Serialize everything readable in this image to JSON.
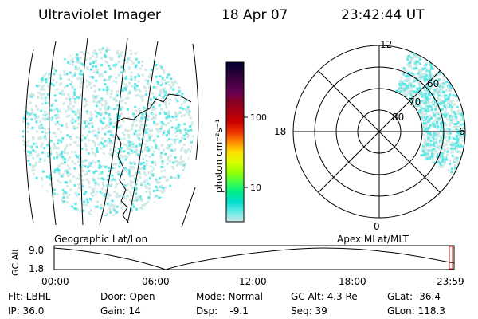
{
  "header": {
    "title": "Ultraviolet Imager",
    "date": "18 Apr 07",
    "time": "23:42:44 UT"
  },
  "colors": {
    "background": "#ffffff",
    "ink": "#000000",
    "emission": "#5de7e6",
    "noise": "#cfe9e6",
    "marker": "#d42020"
  },
  "colorbar": {
    "label": "photon cm⁻²s⁻¹",
    "ticks": [
      {
        "value": "100"
      },
      {
        "value": "10"
      }
    ],
    "stops": [
      "#000033",
      "#220033",
      "#440044",
      "#660055",
      "#880022",
      "#aa0010",
      "#cc0000",
      "#ee3300",
      "#ff8800",
      "#ffdd00",
      "#ddff00",
      "#99ff00",
      "#44ff44",
      "#00ee88",
      "#00ddcc",
      "#66ecea",
      "#cce9e6"
    ]
  },
  "geo_panel": {
    "caption": "Geographic Lat/Lon"
  },
  "polar_panel": {
    "caption": "Apex  MLat/MLT",
    "mlt_labels": [
      "12",
      "18",
      "6",
      "0"
    ],
    "mlat_labels": [
      "60",
      "70",
      "80"
    ]
  },
  "altitude_plot": {
    "ylabel": "GC Alt",
    "yticks": [
      "9.0",
      "1.8"
    ],
    "xticks": [
      "00:00",
      "06:00",
      "12:00",
      "18:00",
      "23:59"
    ],
    "current_fraction": 0.99
  },
  "info": {
    "filter": "Flt: LBHL",
    "ip": "IP: 36.0",
    "door": "Door: Open",
    "gain": "Gain: 14",
    "mode": "Mode: Normal",
    "dsp": "Dsp:    -9.1",
    "gc_alt": "GC Alt: 4.3 Re",
    "seq": "Seq: 39",
    "glat": "GLat: -36.4",
    "glon": "GLon: 118.3"
  }
}
